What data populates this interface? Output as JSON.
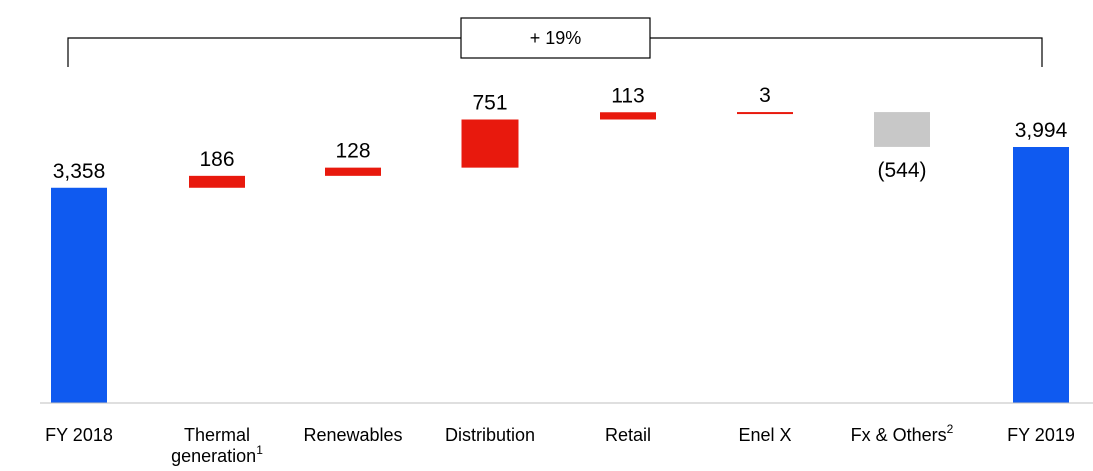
{
  "chart_data": {
    "type": "bar",
    "subtype": "waterfall",
    "categories": [
      "FY 2018",
      "Thermal generation",
      "Renewables",
      "Distribution",
      "Retail",
      "Enel X",
      "Fx & Others",
      "FY 2019"
    ],
    "category_lines": [
      [
        "FY 2018"
      ],
      [
        "Thermal",
        "generation"
      ],
      [
        "Renewables"
      ],
      [
        "Distribution"
      ],
      [
        "Retail"
      ],
      [
        "Enel X"
      ],
      [
        "Fx & Others"
      ],
      [
        "FY 2019"
      ]
    ],
    "category_superscripts": [
      "",
      "1",
      "",
      "",
      "",
      "",
      "2",
      ""
    ],
    "values": [
      3358,
      186,
      128,
      751,
      113,
      3,
      -544,
      3994
    ],
    "value_labels": [
      "3,358",
      "186",
      "128",
      "751",
      "113",
      "3",
      "(544)",
      "3,994"
    ],
    "kinds": [
      "total",
      "delta",
      "delta",
      "delta",
      "delta",
      "delta",
      "delta",
      "total"
    ],
    "growth_label": "+ 19%",
    "colors": {
      "total": "#0f5af0",
      "positive": "#e8190d",
      "negative": "#c8c8c8",
      "axis": "#bfbfbf",
      "bracket": "#000000"
    },
    "grid": false,
    "legend": false
  }
}
